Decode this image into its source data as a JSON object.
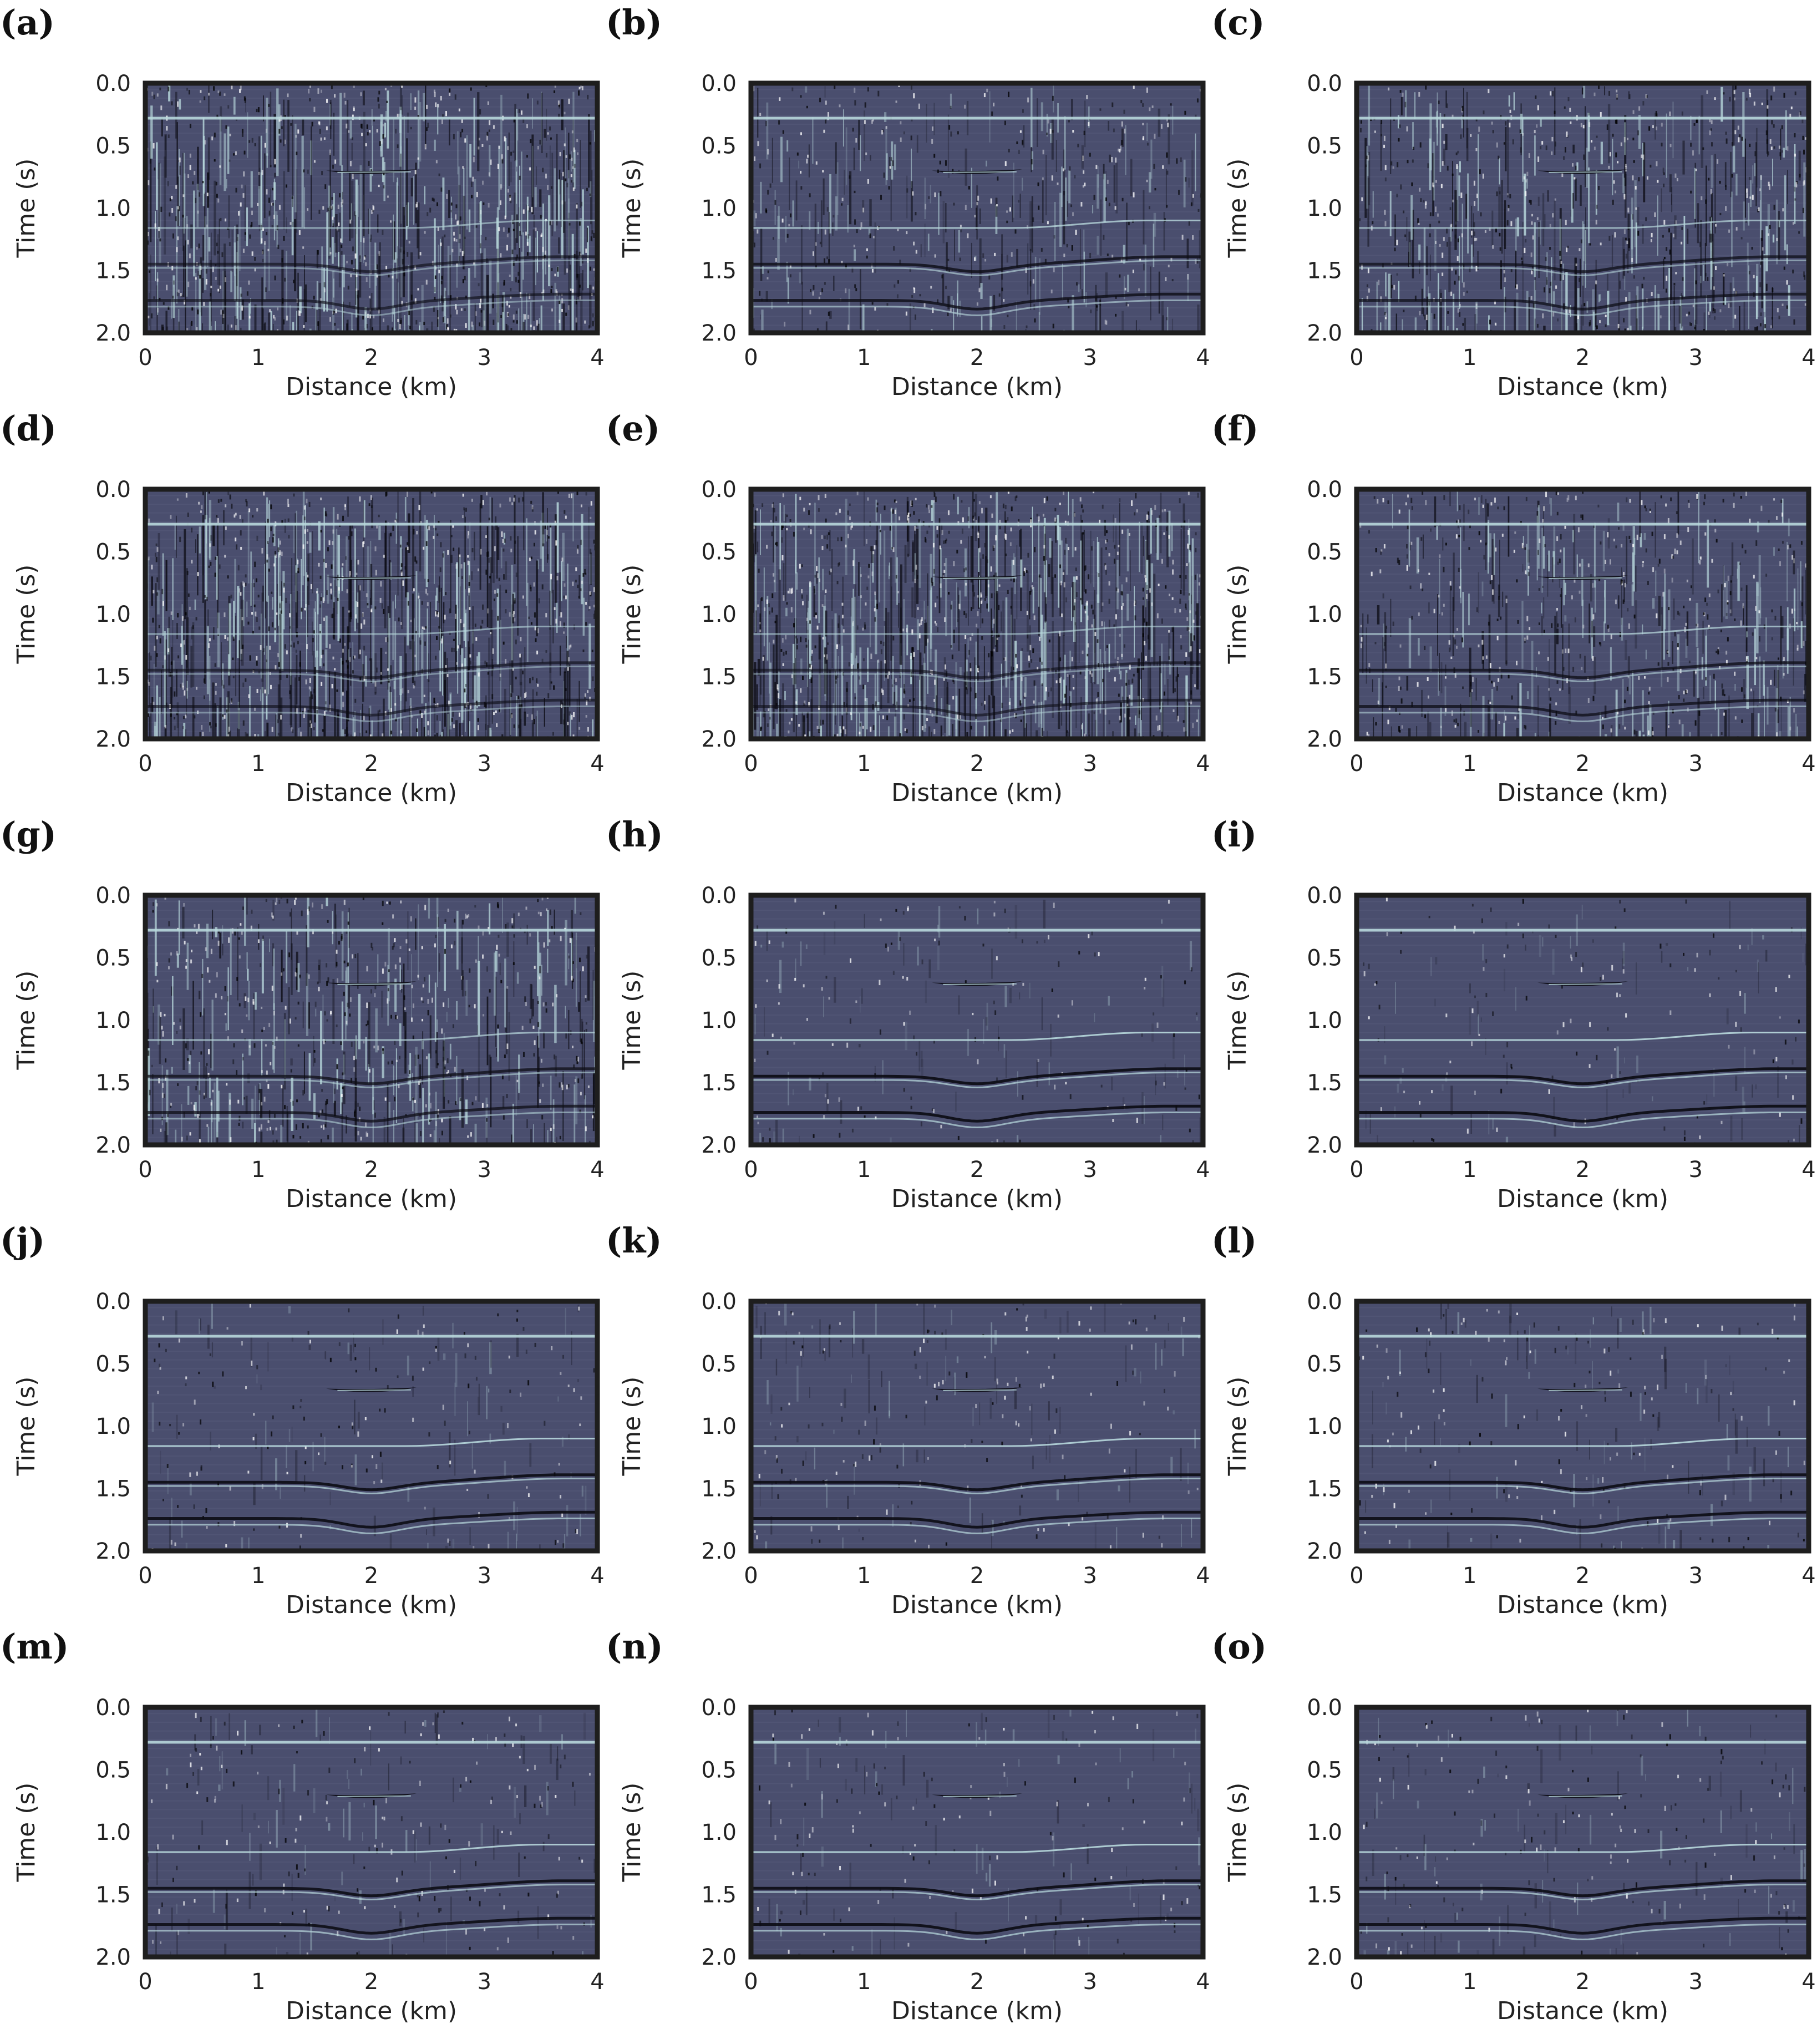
{
  "figure": {
    "background_color": "#4a4e6e",
    "frame_color": "#1e1e1e",
    "reflector_bright_color": "#b8d8dc",
    "reflector_dark_color": "#0c0c14"
  },
  "chart_data": [
    {
      "label": "(a)",
      "type": "heatmap",
      "xlabel": "Distance (km)",
      "ylabel": "Time (s)",
      "xlim": [
        0,
        4
      ],
      "ylim": [
        2.0,
        0.0
      ],
      "xticks": [
        "0",
        "1",
        "2",
        "3",
        "4"
      ],
      "yticks": [
        "0.0",
        "0.5",
        "1.0",
        "1.5",
        "2.0"
      ],
      "noise_level": 0.95
    },
    {
      "label": "(b)",
      "type": "heatmap",
      "xlabel": "Distance (km)",
      "ylabel": "Time (s)",
      "xlim": [
        0,
        4
      ],
      "ylim": [
        2.0,
        0.0
      ],
      "xticks": [
        "0",
        "1",
        "2",
        "3",
        "4"
      ],
      "yticks": [
        "0.0",
        "0.5",
        "1.0",
        "1.5",
        "2.0"
      ],
      "noise_level": 0.45
    },
    {
      "label": "(c)",
      "type": "heatmap",
      "xlabel": "Distance (km)",
      "ylabel": "Time (s)",
      "xlim": [
        0,
        4
      ],
      "ylim": [
        2.0,
        0.0
      ],
      "xticks": [
        "0",
        "1",
        "2",
        "3",
        "4"
      ],
      "yticks": [
        "0.0",
        "0.5",
        "1.0",
        "1.5",
        "2.0"
      ],
      "noise_level": 0.7
    },
    {
      "label": "(d)",
      "type": "heatmap",
      "xlabel": "Distance (km)",
      "ylabel": "Time (s)",
      "xlim": [
        0,
        4
      ],
      "ylim": [
        2.0,
        0.0
      ],
      "xticks": [
        "0",
        "1",
        "2",
        "3",
        "4"
      ],
      "yticks": [
        "0.0",
        "0.5",
        "1.0",
        "1.5",
        "2.0"
      ],
      "noise_level": 1.0
    },
    {
      "label": "(e)",
      "type": "heatmap",
      "xlabel": "Distance (km)",
      "ylabel": "Time (s)",
      "xlim": [
        0,
        4
      ],
      "ylim": [
        2.0,
        0.0
      ],
      "xticks": [
        "0",
        "1",
        "2",
        "3",
        "4"
      ],
      "yticks": [
        "0.0",
        "0.5",
        "1.0",
        "1.5",
        "2.0"
      ],
      "noise_level": 1.0
    },
    {
      "label": "(f)",
      "type": "heatmap",
      "xlabel": "Distance (km)",
      "ylabel": "Time (s)",
      "xlim": [
        0,
        4
      ],
      "ylim": [
        2.0,
        0.0
      ],
      "xticks": [
        "0",
        "1",
        "2",
        "3",
        "4"
      ],
      "yticks": [
        "0.0",
        "0.5",
        "1.0",
        "1.5",
        "2.0"
      ],
      "noise_level": 0.6
    },
    {
      "label": "(g)",
      "type": "heatmap",
      "xlabel": "Distance (km)",
      "ylabel": "Time (s)",
      "xlim": [
        0,
        4
      ],
      "ylim": [
        2.0,
        0.0
      ],
      "xticks": [
        "0",
        "1",
        "2",
        "3",
        "4"
      ],
      "yticks": [
        "0.0",
        "0.5",
        "1.0",
        "1.5",
        "2.0"
      ],
      "noise_level": 0.65
    },
    {
      "label": "(h)",
      "type": "heatmap",
      "xlabel": "Distance (km)",
      "ylabel": "Time (s)",
      "xlim": [
        0,
        4
      ],
      "ylim": [
        2.0,
        0.0
      ],
      "xticks": [
        "0",
        "1",
        "2",
        "3",
        "4"
      ],
      "yticks": [
        "0.0",
        "0.5",
        "1.0",
        "1.5",
        "2.0"
      ],
      "noise_level": 0.12
    },
    {
      "label": "(i)",
      "type": "heatmap",
      "xlabel": "Distance (km)",
      "ylabel": "Time (s)",
      "xlim": [
        0,
        4
      ],
      "ylim": [
        2.0,
        0.0
      ],
      "xticks": [
        "0",
        "1",
        "2",
        "3",
        "4"
      ],
      "yticks": [
        "0.0",
        "0.5",
        "1.0",
        "1.5",
        "2.0"
      ],
      "noise_level": 0.1
    },
    {
      "label": "(j)",
      "type": "heatmap",
      "xlabel": "Distance (km)",
      "ylabel": "Time (s)",
      "xlim": [
        0,
        4
      ],
      "ylim": [
        2.0,
        0.0
      ],
      "xticks": [
        "0",
        "1",
        "2",
        "3",
        "4"
      ],
      "yticks": [
        "0.0",
        "0.5",
        "1.0",
        "1.5",
        "2.0"
      ],
      "noise_level": 0.15
    },
    {
      "label": "(k)",
      "type": "heatmap",
      "xlabel": "Distance (km)",
      "ylabel": "Time (s)",
      "xlim": [
        0,
        4
      ],
      "ylim": [
        2.0,
        0.0
      ],
      "xticks": [
        "0",
        "1",
        "2",
        "3",
        "4"
      ],
      "yticks": [
        "0.0",
        "0.5",
        "1.0",
        "1.5",
        "2.0"
      ],
      "noise_level": 0.15
    },
    {
      "label": "(l)",
      "type": "heatmap",
      "xlabel": "Distance (km)",
      "ylabel": "Time (s)",
      "xlim": [
        0,
        4
      ],
      "ylim": [
        2.0,
        0.0
      ],
      "xticks": [
        "0",
        "1",
        "2",
        "3",
        "4"
      ],
      "yticks": [
        "0.0",
        "0.5",
        "1.0",
        "1.5",
        "2.0"
      ],
      "noise_level": 0.15
    },
    {
      "label": "(m)",
      "type": "heatmap",
      "xlabel": "Distance (km)",
      "ylabel": "Time (s)",
      "xlim": [
        0,
        4
      ],
      "ylim": [
        2.0,
        0.0
      ],
      "xticks": [
        "0",
        "1",
        "2",
        "3",
        "4"
      ],
      "yticks": [
        "0.0",
        "0.5",
        "1.0",
        "1.5",
        "2.0"
      ],
      "noise_level": 0.18
    },
    {
      "label": "(n)",
      "type": "heatmap",
      "xlabel": "Distance (km)",
      "ylabel": "Time (s)",
      "xlim": [
        0,
        4
      ],
      "ylim": [
        2.0,
        0.0
      ],
      "xticks": [
        "0",
        "1",
        "2",
        "3",
        "4"
      ],
      "yticks": [
        "0.0",
        "0.5",
        "1.0",
        "1.5",
        "2.0"
      ],
      "noise_level": 0.12
    },
    {
      "label": "(o)",
      "type": "heatmap",
      "xlabel": "Distance (km)",
      "ylabel": "Time (s)",
      "xlim": [
        0,
        4
      ],
      "ylim": [
        2.0,
        0.0
      ],
      "xticks": [
        "0",
        "1",
        "2",
        "3",
        "4"
      ],
      "yticks": [
        "0.0",
        "0.5",
        "1.0",
        "1.5",
        "2.0"
      ],
      "noise_level": 0.15
    }
  ]
}
